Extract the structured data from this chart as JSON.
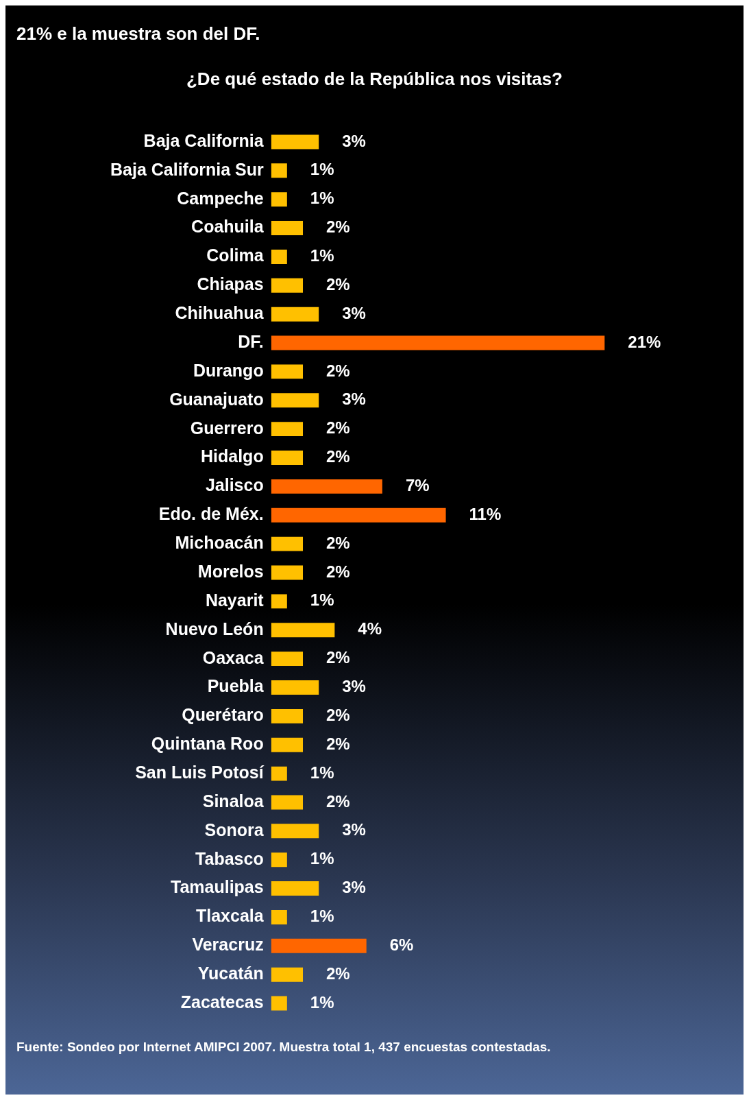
{
  "chart_data": {
    "type": "bar",
    "orientation": "horizontal",
    "title": "21% e la muestra son del DF.",
    "subtitle": "¿De qué estado de la República nos visitas?",
    "categories": [
      "Baja California",
      "Baja California Sur",
      "Campeche",
      "Coahuila",
      "Colima",
      "Chiapas",
      "Chihuahua",
      "DF.",
      "Durango",
      "Guanajuato",
      "Guerrero",
      "Hidalgo",
      "Jalisco",
      "Edo. de Méx.",
      "Michoacán",
      "Morelos",
      "Nayarit",
      "Nuevo León",
      "Oaxaca",
      "Puebla",
      "Querétaro",
      "Quintana Roo",
      "San Luis Potosí",
      "Sinaloa",
      "Sonora",
      "Tabasco",
      "Tamaulipas",
      "Tlaxcala",
      "Veracruz",
      "Yucatán",
      "Zacatecas"
    ],
    "values": [
      3,
      1,
      1,
      2,
      1,
      2,
      3,
      21,
      2,
      3,
      2,
      2,
      7,
      11,
      2,
      2,
      1,
      4,
      2,
      3,
      2,
      2,
      1,
      2,
      3,
      1,
      3,
      1,
      6,
      2,
      1
    ],
    "value_labels": [
      "3%",
      "1%",
      "1%",
      "2%",
      "1%",
      "2%",
      "3%",
      "21%",
      "2%",
      "3%",
      "2%",
      "2%",
      "7%",
      "11%",
      "2%",
      "2%",
      "1%",
      "4%",
      "2%",
      "3%",
      "2%",
      "2%",
      "1%",
      "2%",
      "3%",
      "1%",
      "3%",
      "1%",
      "6%",
      "2%",
      "1%"
    ],
    "colors": [
      "#ffc000",
      "#ffc000",
      "#ffc000",
      "#ffc000",
      "#ffc000",
      "#ffc000",
      "#ffc000",
      "#ff6600",
      "#ffc000",
      "#ffc000",
      "#ffc000",
      "#ffc000",
      "#ff6600",
      "#ff6600",
      "#ffc000",
      "#ffc000",
      "#ffc000",
      "#ffc000",
      "#ffc000",
      "#ffc000",
      "#ffc000",
      "#ffc000",
      "#ffc000",
      "#ffc000",
      "#ffc000",
      "#ffc000",
      "#ffc000",
      "#ffc000",
      "#ff6600",
      "#ffc000",
      "#ffc000"
    ],
    "legend": false,
    "tick_labels": "y",
    "annotations": [
      "Fuente: Sondeo por Internet AMIPCI 2007. Muestra total 1, 437 encuestas contestadas."
    ]
  }
}
